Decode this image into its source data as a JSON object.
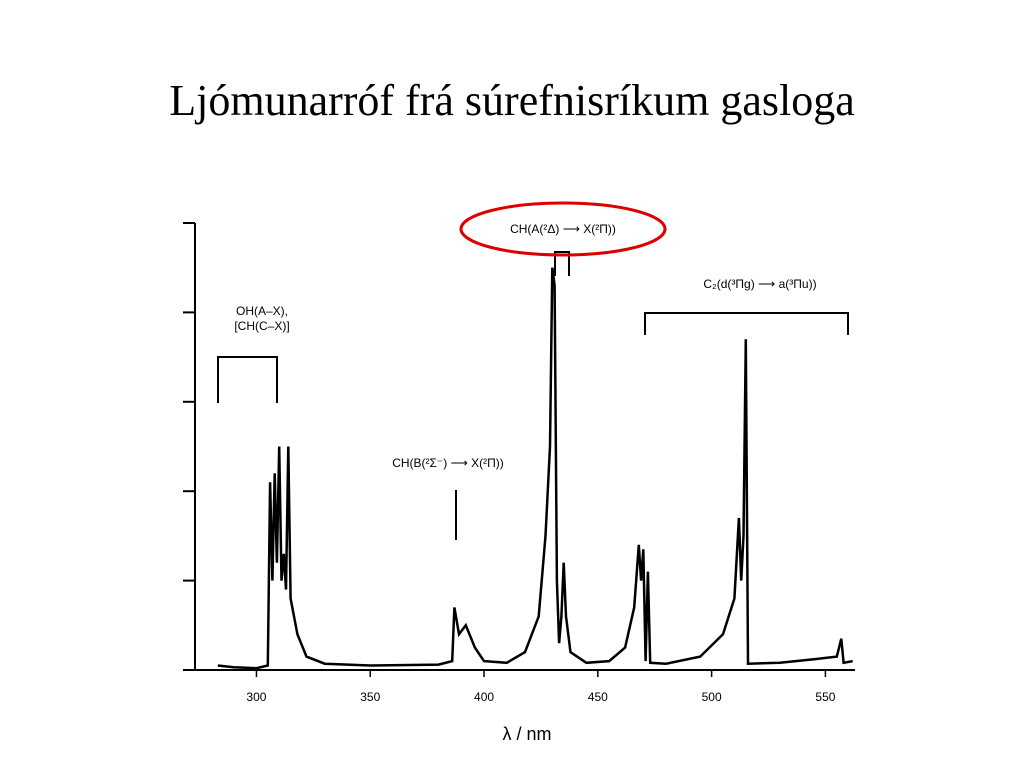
{
  "chart_data": {
    "type": "line",
    "title": "Ljómunarróf frá súrefnisríkum gasloga",
    "x_label": "λ / nm",
    "annotations": [
      "OH(A–X),",
      "[CH(C–X)]",
      "CH(B(²Σ⁻) ⟶ X(²Π))",
      "CH(A(²Δ) ⟶ X(²Π))",
      "C₂(d(³Πg) ⟶ a(³Πu))"
    ],
    "color": "#000000",
    "xlim": [
      273,
      563
    ],
    "xticks": [
      300,
      350,
      400,
      450,
      500,
      550
    ],
    "ylim": [
      0,
      5
    ],
    "yticks": [
      0,
      1,
      2,
      3,
      4,
      5
    ],
    "x": [
      283,
      290,
      300,
      305,
      306,
      307,
      308,
      309,
      310,
      311,
      312,
      313,
      314,
      315,
      318,
      322,
      330,
      350,
      380,
      386,
      387,
      389,
      392,
      396,
      400,
      410,
      418,
      424,
      427,
      429,
      430,
      431,
      432,
      433,
      434,
      435,
      436,
      438,
      445,
      455,
      462,
      466,
      468,
      469,
      470,
      471,
      472,
      473,
      480,
      495,
      505,
      510,
      512,
      513,
      514,
      515,
      516,
      530,
      545,
      555,
      557,
      558,
      562
    ],
    "values": [
      0.05,
      0.03,
      0.02,
      0.05,
      2.1,
      1.0,
      2.2,
      1.2,
      2.5,
      1.0,
      1.3,
      0.9,
      2.5,
      0.8,
      0.4,
      0.15,
      0.07,
      0.05,
      0.06,
      0.1,
      0.7,
      0.4,
      0.5,
      0.25,
      0.1,
      0.08,
      0.2,
      0.6,
      1.5,
      2.5,
      4.5,
      4.3,
      1.0,
      0.3,
      0.6,
      1.2,
      0.6,
      0.2,
      0.08,
      0.1,
      0.25,
      0.7,
      1.4,
      1.0,
      1.35,
      0.1,
      1.1,
      0.08,
      0.07,
      0.15,
      0.4,
      0.8,
      1.7,
      1.0,
      1.5,
      3.7,
      0.07,
      0.08,
      0.12,
      0.15,
      0.35,
      0.08,
      0.1
    ]
  }
}
